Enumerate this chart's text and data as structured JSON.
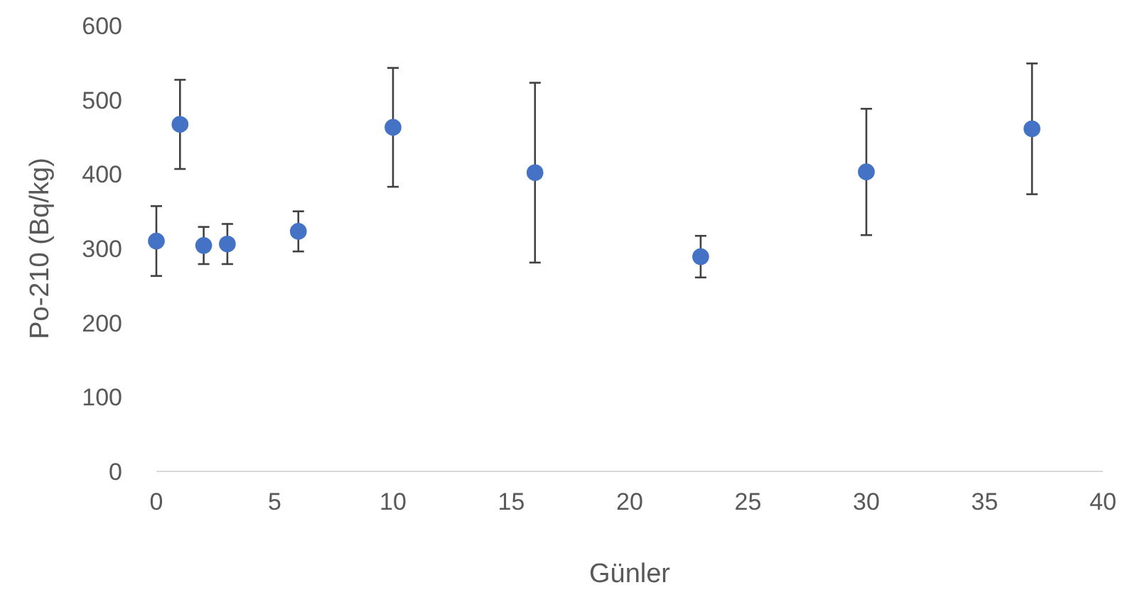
{
  "chart_data": {
    "type": "scatter",
    "xlabel": "Günler",
    "ylabel": "Po-210 (Bq/kg)",
    "x": [
      0,
      1,
      2,
      3,
      6,
      10,
      16,
      23,
      30,
      37
    ],
    "values": [
      310,
      467,
      304,
      306,
      323,
      463,
      402,
      289,
      403,
      461
    ],
    "errors": [
      47,
      60,
      25,
      27,
      27,
      80,
      121,
      28,
      85,
      88
    ],
    "color": "#4472c4",
    "marker": "circle",
    "xlim": [
      0,
      40
    ],
    "xticks": [
      0,
      5,
      10,
      15,
      20,
      25,
      30,
      35,
      40
    ],
    "ylim": [
      0,
      600
    ],
    "yticks": [
      0,
      100,
      200,
      300,
      400,
      500,
      600
    ],
    "grid": false
  }
}
